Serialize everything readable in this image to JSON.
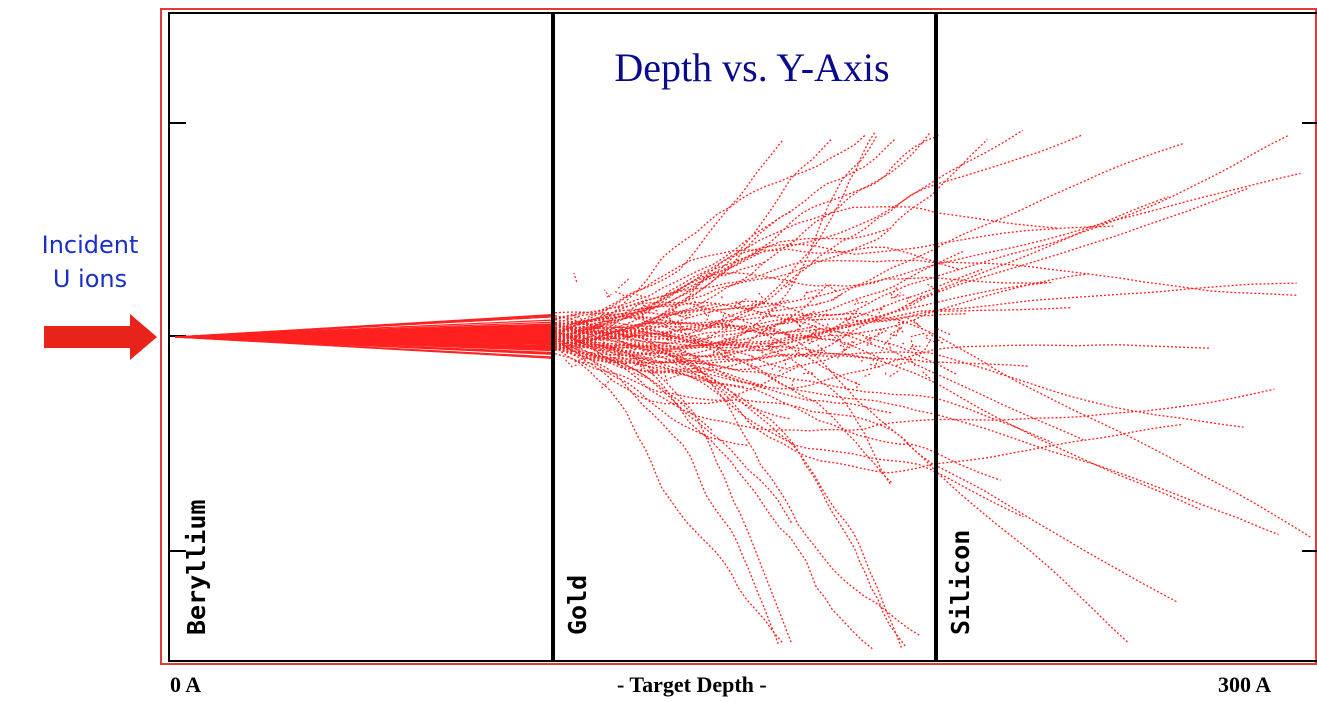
{
  "title": "Depth vs. Y-Axis",
  "incident_label_line1": "Incident",
  "incident_label_line2": "U ions",
  "x_axis": {
    "left_label": "0 A",
    "center_label": "- Target Depth -",
    "right_label": "300 A"
  },
  "layers": [
    {
      "name": "Beryllium"
    },
    {
      "name": "Gold"
    },
    {
      "name": "Silicon"
    }
  ],
  "colors": {
    "frame": "#e23b3b",
    "tracks": "#ff2020",
    "arrow": "#e8231a",
    "title": "#0a0a8c",
    "incident_text": "#1a2fc7",
    "boundaries": "#000000"
  }
}
